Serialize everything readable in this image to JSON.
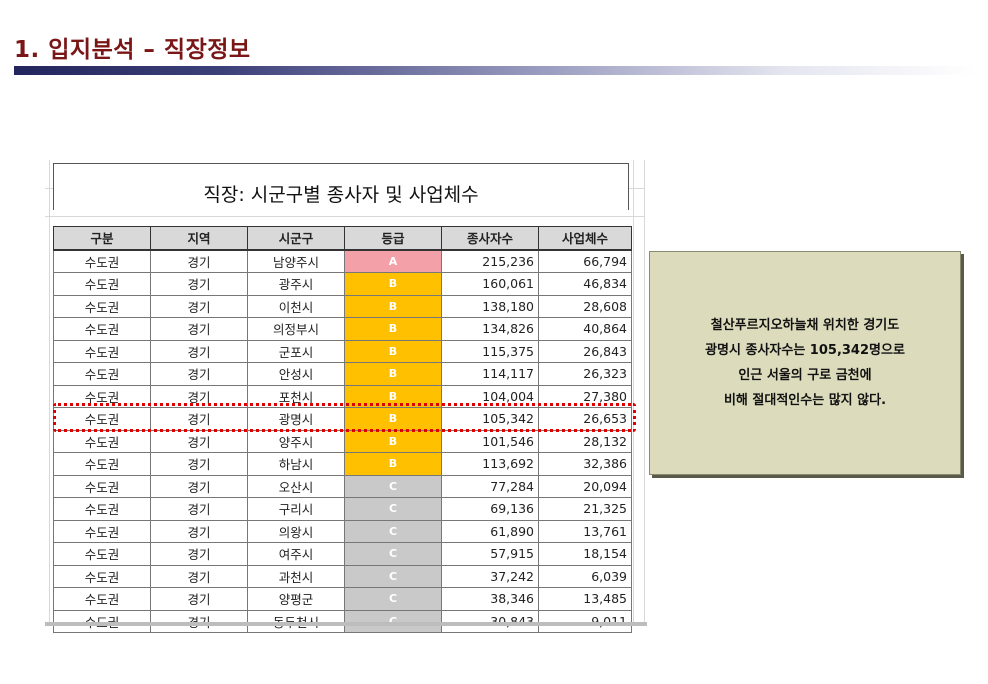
{
  "slide": {
    "title": "1. 입지분석 – 직장정보"
  },
  "table": {
    "title": "직장: 시군구별 종사자 및 사업체수",
    "headers": [
      "구분",
      "지역",
      "시군구",
      "등급",
      "종사자수",
      "사업체수"
    ],
    "rows": [
      [
        "수도권",
        "경기",
        "남양주시",
        "A",
        "215,236",
        "66,794"
      ],
      [
        "수도권",
        "경기",
        "광주시",
        "B",
        "160,061",
        "46,834"
      ],
      [
        "수도권",
        "경기",
        "이천시",
        "B",
        "138,180",
        "28,608"
      ],
      [
        "수도권",
        "경기",
        "의정부시",
        "B",
        "134,826",
        "40,864"
      ],
      [
        "수도권",
        "경기",
        "군포시",
        "B",
        "115,375",
        "26,843"
      ],
      [
        "수도권",
        "경기",
        "안성시",
        "B",
        "114,117",
        "26,323"
      ],
      [
        "수도권",
        "경기",
        "포천시",
        "B",
        "104,004",
        "27,380"
      ],
      [
        "수도권",
        "경기",
        "광명시",
        "B",
        "105,342",
        "26,653"
      ],
      [
        "수도권",
        "경기",
        "양주시",
        "B",
        "101,546",
        "28,132"
      ],
      [
        "수도권",
        "경기",
        "하남시",
        "B",
        "113,692",
        "32,386"
      ],
      [
        "수도권",
        "경기",
        "오산시",
        "C",
        "77,284",
        "20,094"
      ],
      [
        "수도권",
        "경기",
        "구리시",
        "C",
        "69,136",
        "21,325"
      ],
      [
        "수도권",
        "경기",
        "의왕시",
        "C",
        "61,890",
        "13,761"
      ],
      [
        "수도권",
        "경기",
        "여주시",
        "C",
        "57,915",
        "18,154"
      ],
      [
        "수도권",
        "경기",
        "과천시",
        "C",
        "37,242",
        "6,039"
      ],
      [
        "수도권",
        "경기",
        "양평군",
        "C",
        "38,346",
        "13,485"
      ],
      [
        "수도권",
        "경기",
        "동두천시",
        "C",
        "30,843",
        "9,011"
      ]
    ],
    "highlight_row": 7,
    "grade_colors": {
      "A": "#f4a0a8",
      "B": "#ffc000",
      "C": "#c9c9c9"
    }
  },
  "note": {
    "lines": [
      "철산푸르지오하늘채 위치한 경기도",
      "광명시 종사자수는 105,342명으로",
      "인근 서울의 구로 금천에",
      "비해 절대적인수는 많지 않다."
    ]
  },
  "colors": {
    "title": "#7a1616",
    "title_bar": "#22265c",
    "highlight_border": "#e00000",
    "note_bg": "#dcdcbd"
  }
}
